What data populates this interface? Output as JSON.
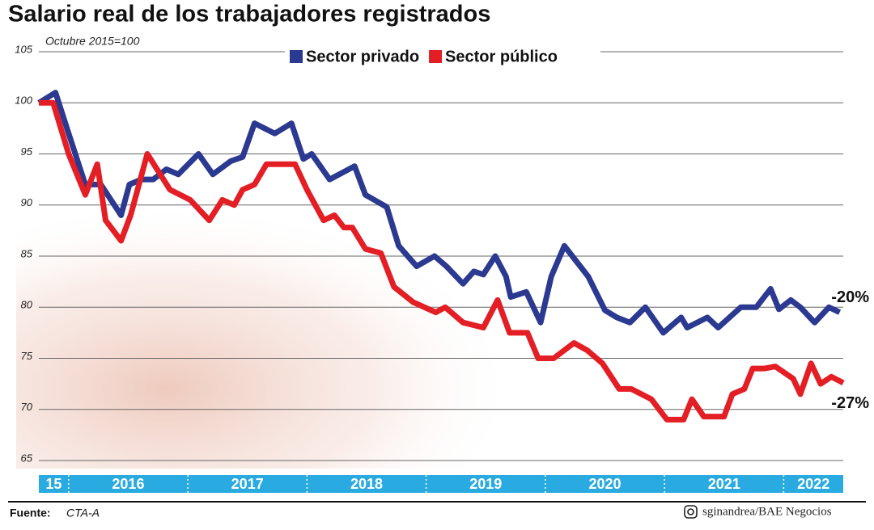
{
  "chart_data": {
    "type": "line",
    "title": "Salario real de los trabajadores registrados",
    "subtitle": "Octubre 2015=100",
    "ylim": [
      65,
      105
    ],
    "yticks": [
      65,
      70,
      75,
      80,
      85,
      90,
      95,
      100,
      105
    ],
    "xlim": [
      2015.75,
      2022.5
    ],
    "year_bands": [
      {
        "value": 2015,
        "label": "15"
      },
      {
        "value": 2016,
        "label": "2016"
      },
      {
        "value": 2017,
        "label": "2017"
      },
      {
        "value": 2018,
        "label": "2018"
      },
      {
        "value": 2019,
        "label": "2019"
      },
      {
        "value": 2020,
        "label": "2020"
      },
      {
        "value": 2021,
        "label": "2021"
      },
      {
        "value": 2022,
        "label": "2022"
      }
    ],
    "grid": true,
    "legend": "top",
    "series": [
      {
        "name": "Sector privado",
        "color": "#2b3990",
        "x": [
          2015.75,
          2015.89,
          2016.0,
          2016.14,
          2016.27,
          2016.44,
          2016.51,
          2016.61,
          2016.71,
          2016.82,
          2016.92,
          2017.09,
          2017.21,
          2017.36,
          2017.46,
          2017.56,
          2017.73,
          2017.87,
          2017.97,
          2018.04,
          2018.19,
          2018.4,
          2018.49,
          2018.67,
          2018.77,
          2018.92,
          2019.07,
          2019.17,
          2019.31,
          2019.4,
          2019.48,
          2019.58,
          2019.67,
          2019.71,
          2019.84,
          2019.96,
          2020.05,
          2020.16,
          2020.26,
          2020.36,
          2020.5,
          2020.6,
          2020.71,
          2020.84,
          2020.99,
          2021.14,
          2021.19,
          2021.36,
          2021.45,
          2021.64,
          2021.77,
          2021.89,
          2021.96,
          2022.06,
          2022.14,
          2022.26,
          2022.38,
          2022.47
        ],
        "values": [
          100,
          101,
          97,
          92,
          92,
          89,
          92,
          92.5,
          92.5,
          93.5,
          93,
          95,
          93,
          94.3,
          94.7,
          98,
          97,
          98,
          94.5,
          95,
          92.5,
          93.8,
          91,
          89.8,
          86,
          84,
          85,
          84,
          82.3,
          83.5,
          83.2,
          85,
          83,
          81,
          81.5,
          78.5,
          83,
          86,
          84.5,
          83,
          79.7,
          79,
          78.5,
          80,
          77.5,
          79,
          78,
          79,
          78,
          80,
          80,
          81.8,
          79.8,
          80.7,
          80,
          78.5,
          80,
          79.5
        ]
      },
      {
        "name": "Sector público",
        "color": "#e31e24",
        "x": [
          2015.75,
          2015.87,
          2016.0,
          2016.14,
          2016.24,
          2016.31,
          2016.44,
          2016.52,
          2016.66,
          2016.85,
          2017.02,
          2017.18,
          2017.29,
          2017.39,
          2017.46,
          2017.56,
          2017.66,
          2017.9,
          2018.0,
          2018.14,
          2018.23,
          2018.31,
          2018.38,
          2018.49,
          2018.62,
          2018.73,
          2018.89,
          2019.08,
          2019.16,
          2019.31,
          2019.48,
          2019.6,
          2019.7,
          2019.85,
          2019.94,
          2020.07,
          2020.24,
          2020.35,
          2020.48,
          2020.62,
          2020.72,
          2020.89,
          2021.02,
          2021.16,
          2021.23,
          2021.33,
          2021.5,
          2021.57,
          2021.67,
          2021.74,
          2021.84,
          2021.93,
          2022.08,
          2022.14,
          2022.23,
          2022.31,
          2022.4,
          2022.5
        ],
        "values": [
          100,
          100,
          95,
          91,
          94,
          88.5,
          86.5,
          89,
          95,
          91.5,
          90.5,
          88.5,
          90.5,
          90,
          91.5,
          92,
          94,
          94,
          91.5,
          88.5,
          89,
          87.8,
          87.8,
          85.7,
          85.3,
          82,
          80.5,
          79.5,
          80,
          78.5,
          78,
          80.7,
          77.5,
          77.5,
          75,
          75,
          76.5,
          75.8,
          74.5,
          72,
          72,
          71,
          69,
          69,
          71,
          69.3,
          69.3,
          71.5,
          72,
          74,
          74,
          74.2,
          73,
          71.5,
          74.5,
          72.5,
          73.2,
          72.6
        ]
      }
    ],
    "annotations": [
      "-20%",
      "-27%"
    ],
    "source_label": "Fuente:",
    "source": "CTA-A",
    "credit": "sginandrea/BAE Negocios"
  }
}
